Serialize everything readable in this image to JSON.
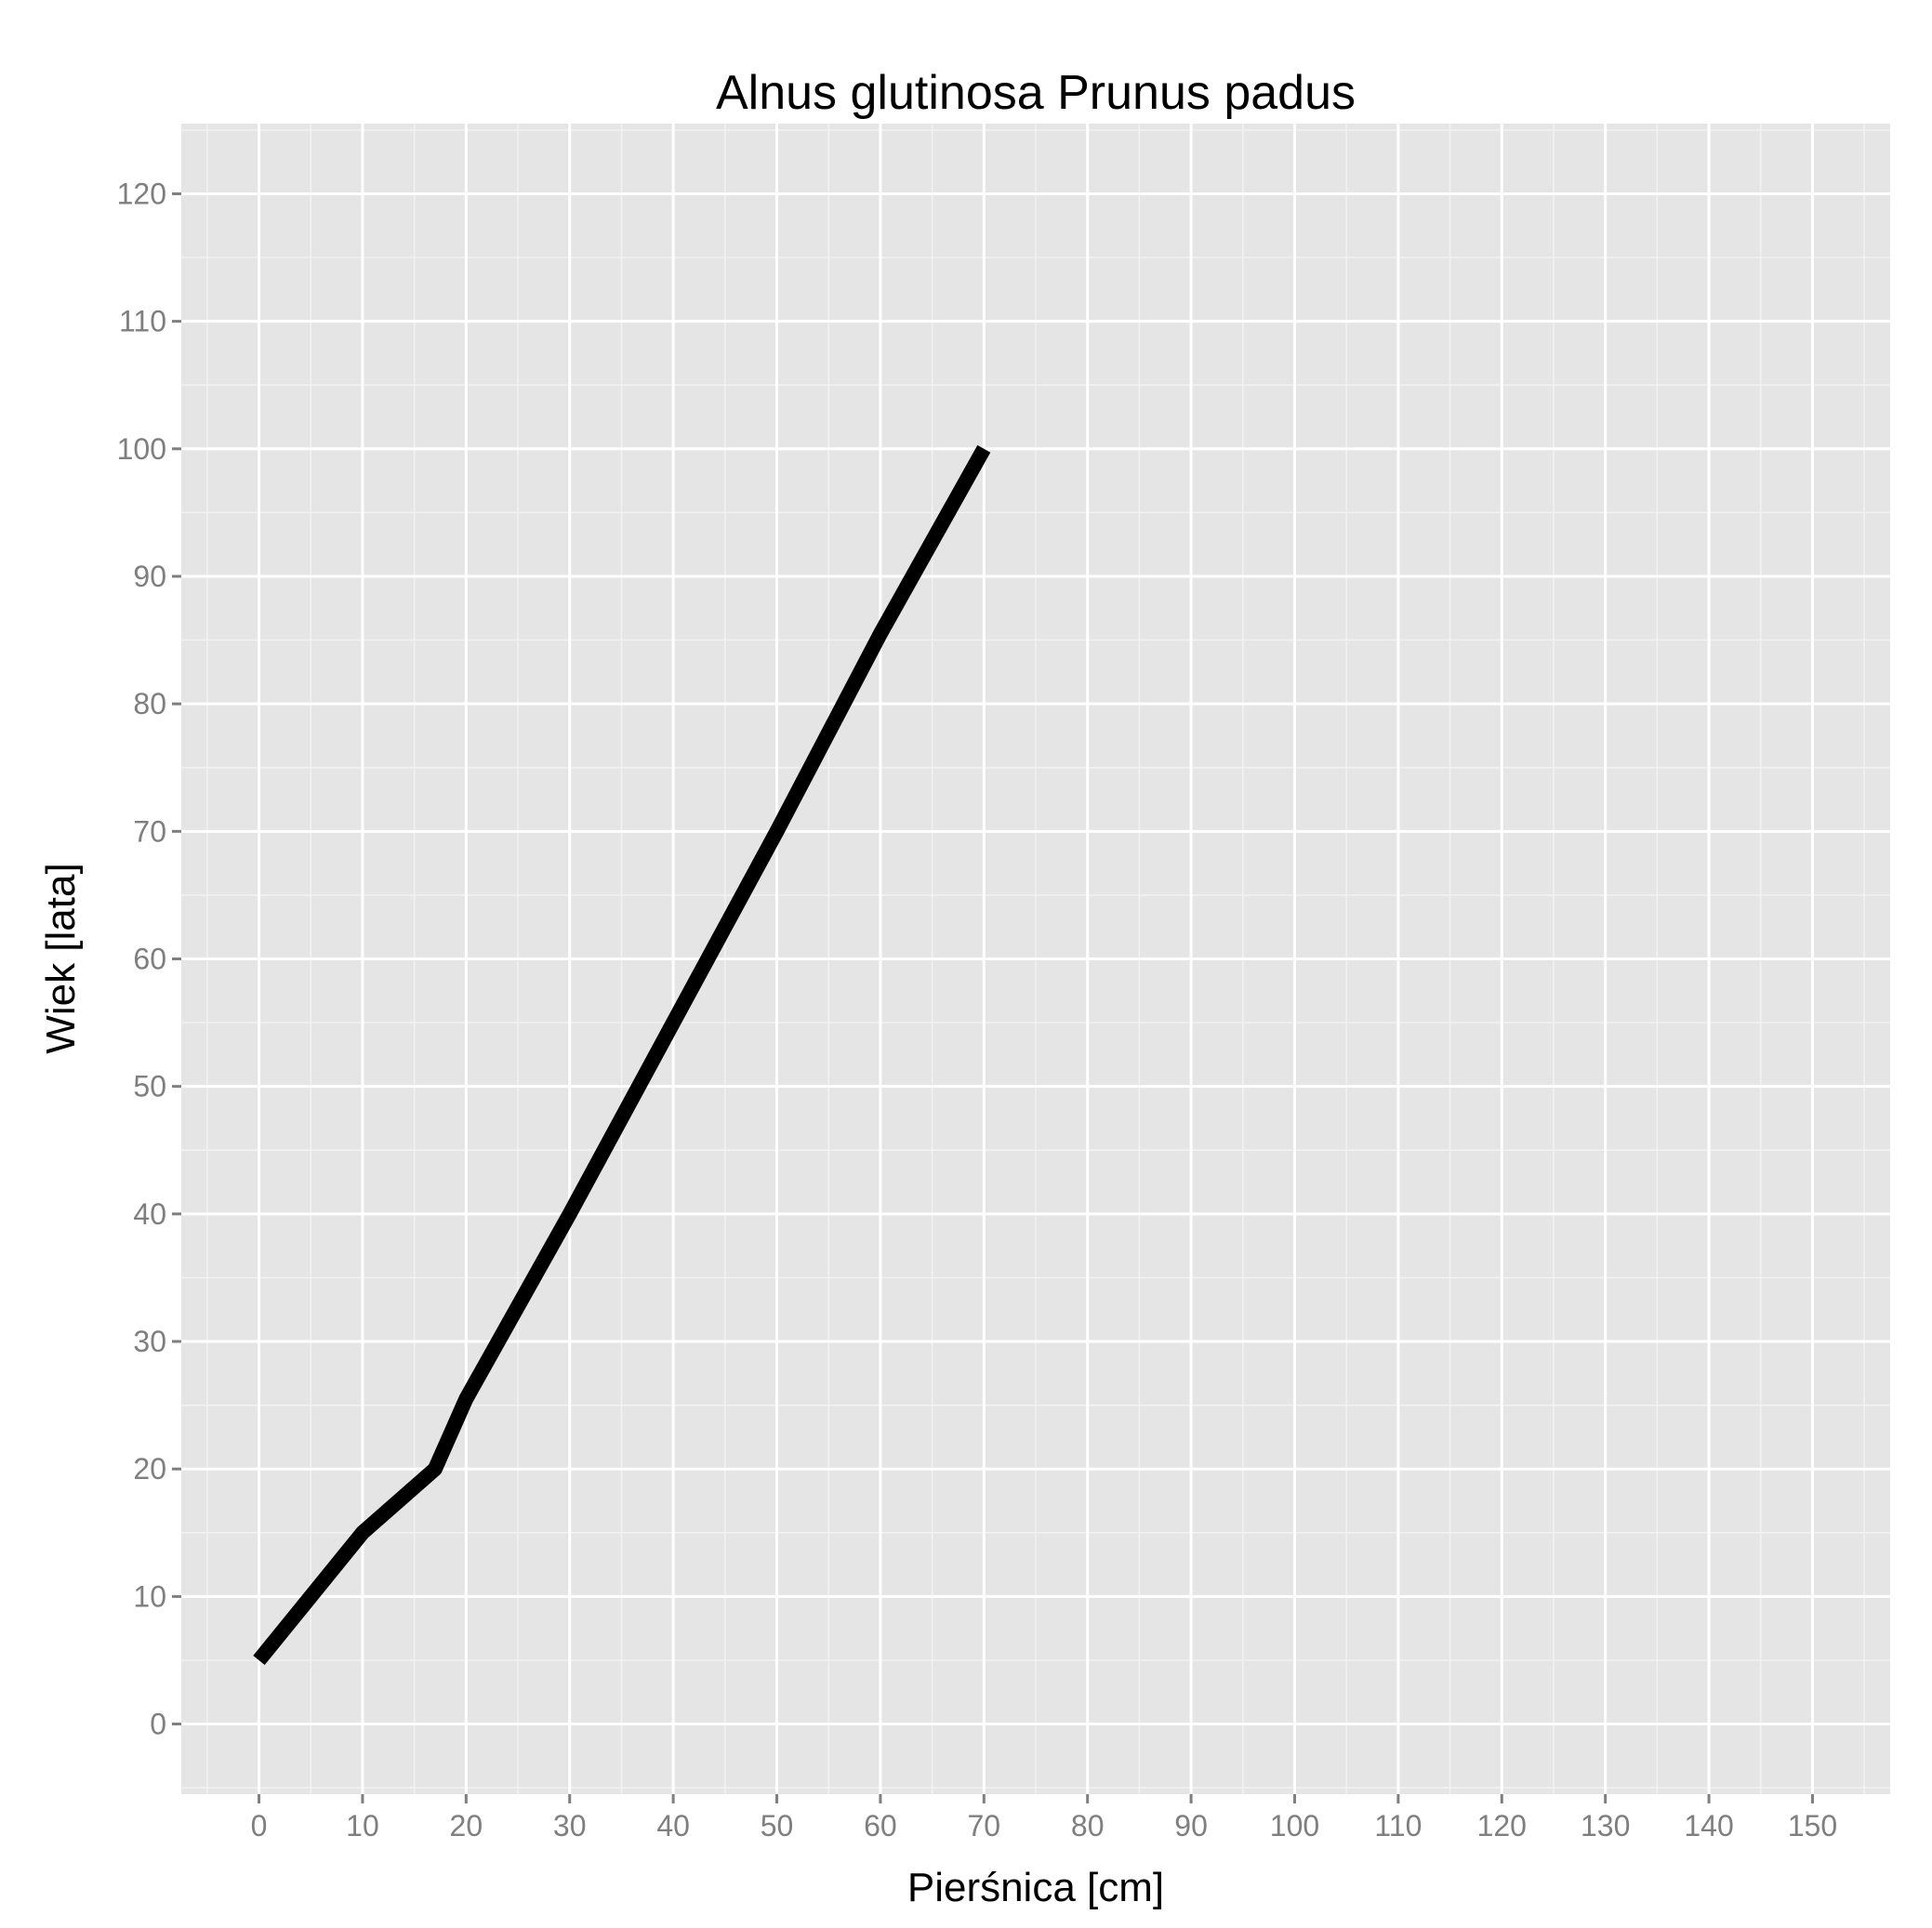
{
  "chart_data": {
    "type": "line",
    "title": "Alnus glutinosa Prunus padus",
    "xlabel": "Pierśnica [cm]",
    "ylabel": "Wiek [lata]",
    "xlim": [
      -7.5,
      157.5
    ],
    "ylim": [
      -5.5,
      125.5
    ],
    "x_ticks": [
      0,
      10,
      20,
      30,
      40,
      50,
      60,
      70,
      80,
      90,
      100,
      110,
      120,
      130,
      140,
      150
    ],
    "y_ticks": [
      0,
      10,
      20,
      30,
      40,
      50,
      60,
      70,
      80,
      90,
      100,
      110,
      120
    ],
    "grid": true,
    "series": [
      {
        "x": [
          0,
          5,
          10,
          17,
          20,
          30,
          40,
          50,
          60,
          70
        ],
        "y": [
          5,
          10,
          15,
          20,
          25.5,
          40,
          55,
          70,
          85.5,
          100
        ]
      }
    ],
    "colors": {
      "panel_background": "#e5e5e5",
      "grid_major": "#ffffff",
      "grid_minor": "#f2f2f2",
      "line": "#000000",
      "tick_text": "#7f7f7f"
    }
  }
}
